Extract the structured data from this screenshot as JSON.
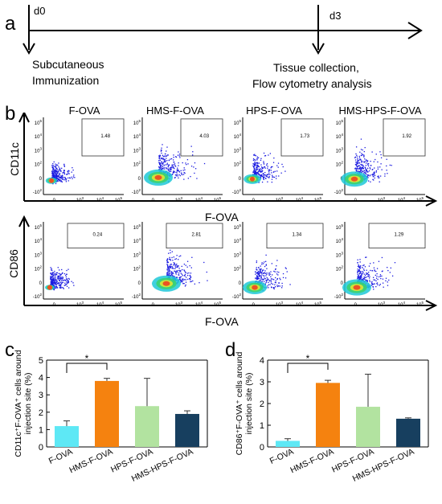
{
  "panel_a": {
    "letter": "a",
    "day_start": "d0",
    "day_end": "d3",
    "event_start_line1": "Subcutaneous",
    "event_start_line2": "Immunization",
    "event_end_line1": "Tissue collection,",
    "event_end_line2": "Flow cytometry analysis"
  },
  "panel_b": {
    "letter": "b",
    "groups": [
      "F-OVA",
      "HMS-F-OVA",
      "HPS-F-OVA",
      "HMS-HPS-F-OVA"
    ],
    "row1_ylabel": "CD11c",
    "row2_ylabel": "CD86",
    "xlabel": "F-OVA",
    "row1_gate_percent": [
      "1.48",
      "4.03",
      "1.73",
      "1.92"
    ],
    "row2_gate_percent": [
      "0.24",
      "2.81",
      "1.34",
      "1.29"
    ],
    "ytick_labels": [
      "10^5",
      "10^4",
      "10^3",
      "10^2",
      "0",
      "-10^2"
    ],
    "xtick_labels": [
      "0",
      "10^3",
      "10^4",
      "10^5"
    ]
  },
  "panel_c": {
    "letter": "c",
    "chart_data": {
      "type": "bar",
      "categories": [
        "F-OVA",
        "HMS-F-OVA",
        "HPS-F-OVA",
        "HMS-HPS-F-OVA"
      ],
      "values": [
        1.2,
        3.8,
        2.35,
        1.9
      ],
      "errors": [
        0.3,
        0.15,
        1.6,
        0.18
      ],
      "colors": [
        "#5ee8f5",
        "#f5820f",
        "#b2e3a0",
        "#173f5f"
      ],
      "ylabel_line1": "CD11c⁺F-OVA⁺ cells around",
      "ylabel_line2": "injection site (%)",
      "ylim": [
        0,
        5
      ],
      "yticks": [
        "0",
        "1",
        "2",
        "3",
        "4",
        "5"
      ],
      "significance": "*"
    }
  },
  "panel_d": {
    "letter": "d",
    "chart_data": {
      "type": "bar",
      "categories": [
        "F-OVA",
        "HMS-F-OVA",
        "HPS-F-OVA",
        "HMS-HPS-F-OVA"
      ],
      "values": [
        0.28,
        2.95,
        1.85,
        1.3
      ],
      "errors": [
        0.1,
        0.12,
        1.5,
        0.04
      ],
      "colors": [
        "#5ee8f5",
        "#f5820f",
        "#b2e3a0",
        "#173f5f"
      ],
      "ylabel_line1": "CD86⁺F-OVA⁺ cells around",
      "ylabel_line2": "injection site (%)",
      "ylim": [
        0,
        4
      ],
      "yticks": [
        "0",
        "1",
        "2",
        "3",
        "4"
      ],
      "significance": "*"
    }
  }
}
